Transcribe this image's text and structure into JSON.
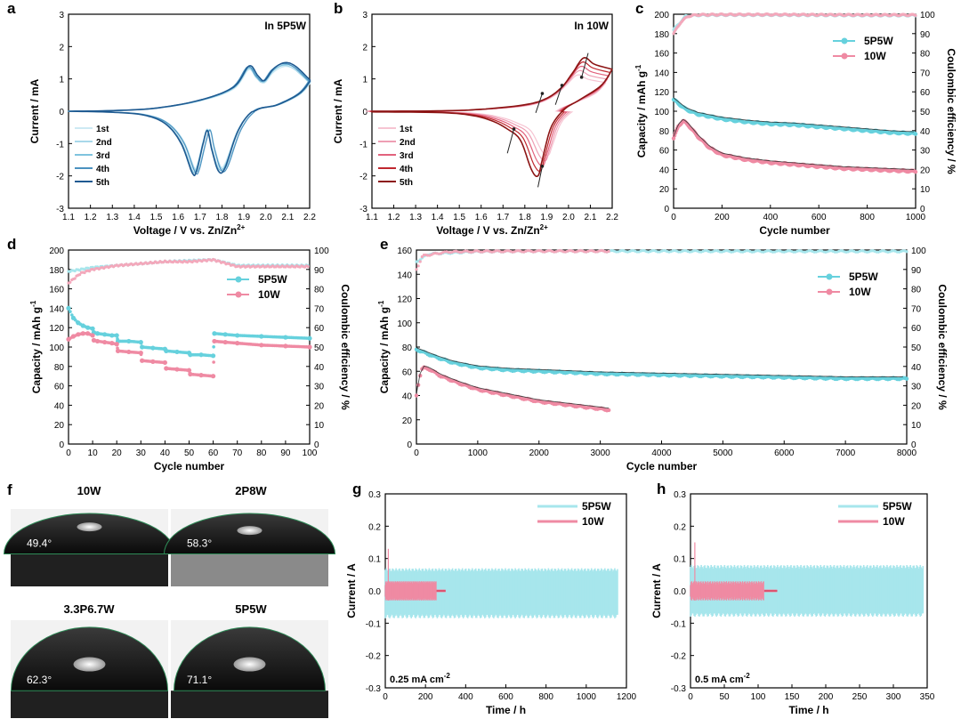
{
  "colors": {
    "blue": [
      "#cde9f3",
      "#a8d8ea",
      "#7fc3de",
      "#4b92c0",
      "#1f5a91"
    ],
    "red": [
      "#f6c4d2",
      "#ee9fb4",
      "#e2627d",
      "#c0282f",
      "#8c1515"
    ],
    "cyan": "#66d1dd",
    "cyan_light": "#a7e6ec",
    "pink": "#ef8aa3",
    "pink_light": "#f3a8bb"
  },
  "chart_data": [
    {
      "id": "a",
      "type": "line",
      "letter": "a",
      "inset_text": "In 5P5W",
      "xlabel": "Voltage / V vs. Zn/Zn",
      "xlabel_sup": "2+",
      "ylabel": "Current / mA",
      "xlim": [
        1.1,
        2.2
      ],
      "ylim": [
        -3,
        3
      ],
      "xticks": [
        "1.1",
        "1.2",
        "1.3",
        "1.4",
        "1.5",
        "1.6",
        "1.7",
        "1.8",
        "1.9",
        "2.0",
        "2.1",
        "2.2"
      ],
      "yticks": [
        "-3",
        "-2",
        "-1",
        "0",
        "1",
        "2",
        "3"
      ],
      "legend": [
        "1st",
        "2nd",
        "3rd",
        "4th",
        "5th"
      ],
      "series_ctrl": {
        "cathodic": [
          [
            2.2,
            0.95
          ],
          [
            2.15,
            0.55
          ],
          [
            2.05,
            0.2
          ],
          [
            1.95,
            0.02
          ],
          [
            1.88,
            -0.6
          ],
          [
            1.82,
            -1.75
          ],
          [
            1.79,
            -1.85
          ],
          [
            1.76,
            -1.2
          ],
          [
            1.74,
            -0.6
          ],
          [
            1.72,
            -1.0
          ],
          [
            1.69,
            -1.85
          ],
          [
            1.67,
            -1.9
          ],
          [
            1.62,
            -1.0
          ],
          [
            1.55,
            -0.4
          ],
          [
            1.45,
            -0.12
          ],
          [
            1.3,
            -0.03
          ],
          [
            1.1,
            0
          ]
        ],
        "anodic": [
          [
            1.1,
            0
          ],
          [
            1.3,
            0.02
          ],
          [
            1.5,
            0.1
          ],
          [
            1.7,
            0.35
          ],
          [
            1.85,
            0.75
          ],
          [
            1.92,
            1.4
          ],
          [
            1.96,
            1.1
          ],
          [
            1.99,
            0.95
          ],
          [
            2.03,
            1.3
          ],
          [
            2.08,
            1.5
          ],
          [
            2.13,
            1.4
          ],
          [
            2.2,
            0.95
          ]
        ]
      }
    },
    {
      "id": "b",
      "type": "line",
      "letter": "b",
      "inset_text": "In 10W",
      "xlabel": "Voltage / V vs. Zn/Zn",
      "xlabel_sup": "2+",
      "ylabel": "Current / mA",
      "xlim": [
        1.1,
        2.2
      ],
      "ylim": [
        -3,
        3
      ],
      "xticks": [
        "1.1",
        "1.2",
        "1.3",
        "1.4",
        "1.5",
        "1.6",
        "1.7",
        "1.8",
        "1.9",
        "2.0",
        "2.1",
        "2.2"
      ],
      "yticks": [
        "-3",
        "-2",
        "-1",
        "0",
        "1",
        "2",
        "3"
      ],
      "legend": [
        "1st",
        "2nd",
        "3rd",
        "4th",
        "5th"
      ],
      "series_ctrl": {
        "cathodic": [
          [
            2.2,
            1.3
          ],
          [
            2.15,
            0.8
          ],
          [
            2.05,
            0.35
          ],
          [
            1.98,
            0.05
          ],
          [
            1.92,
            -0.5
          ],
          [
            1.88,
            -1.5
          ],
          [
            1.86,
            -2.0
          ],
          [
            1.83,
            -1.8
          ],
          [
            1.78,
            -0.9
          ],
          [
            1.72,
            -0.55
          ],
          [
            1.65,
            -0.3
          ],
          [
            1.55,
            -0.12
          ],
          [
            1.4,
            -0.04
          ],
          [
            1.1,
            -0.02
          ]
        ],
        "anodic": [
          [
            1.1,
            0
          ],
          [
            1.4,
            0.01
          ],
          [
            1.6,
            0.06
          ],
          [
            1.8,
            0.2
          ],
          [
            1.9,
            0.4
          ],
          [
            1.97,
            0.75
          ],
          [
            2.02,
            1.2
          ],
          [
            2.07,
            1.65
          ],
          [
            2.12,
            1.45
          ],
          [
            2.2,
            1.3
          ]
        ]
      }
    },
    {
      "id": "c",
      "type": "scatter",
      "letter": "c",
      "xlabel": "Cycle number",
      "ylabel": "Capacity / mAh g",
      "ylabel_sup": "-1",
      "y2label": "Coulombic efficiency / %",
      "xlim": [
        0,
        1000
      ],
      "ylim": [
        0,
        200
      ],
      "y2lim": [
        0,
        100
      ],
      "xticks": [
        "0",
        "200",
        "400",
        "600",
        "800",
        "1000"
      ],
      "yticks": [
        "0",
        "20",
        "40",
        "60",
        "80",
        "100",
        "120",
        "140",
        "160",
        "180",
        "200"
      ],
      "y2ticks": [
        "0",
        "10",
        "20",
        "30",
        "40",
        "50",
        "60",
        "70",
        "80",
        "90",
        "100"
      ],
      "legend": [
        "5P5W",
        "10W"
      ],
      "series": [
        {
          "name": "5P5W capacity",
          "x": [
            0,
            20,
            50,
            100,
            200,
            300,
            400,
            500,
            600,
            700,
            800,
            900,
            1000
          ],
          "y": [
            112,
            108,
            102,
            97,
            92,
            89,
            87,
            86,
            84,
            82,
            80,
            78,
            77
          ]
        },
        {
          "name": "10W capacity",
          "x": [
            0,
            20,
            40,
            60,
            100,
            150,
            200,
            300,
            400,
            500,
            600,
            700,
            800,
            900,
            1000
          ],
          "y": [
            72,
            85,
            90,
            86,
            74,
            62,
            55,
            50,
            47,
            45,
            43,
            41,
            40,
            39,
            38
          ]
        },
        {
          "name": "5P5W CE",
          "x": [
            0,
            50,
            100,
            200,
            400,
            600,
            800,
            1000
          ],
          "y": [
            92,
            99,
            99.5,
            99.6,
            99.6,
            99.5,
            99.4,
            99.4
          ]
        },
        {
          "name": "10W CE",
          "x": [
            0,
            30,
            60,
            100,
            200,
            400,
            600,
            800,
            1000
          ],
          "y": [
            90,
            96,
            99,
            99.7,
            99.8,
            99.8,
            99.7,
            99.6,
            99.6
          ]
        }
      ]
    },
    {
      "id": "d",
      "type": "scatter",
      "letter": "d",
      "xlabel": "Cycle number",
      "ylabel": "Capacity / mAh g",
      "ylabel_sup": "-1",
      "y2label": "Coulombic efficiency / %",
      "xlim": [
        0,
        100
      ],
      "ylim": [
        0,
        200
      ],
      "y2lim": [
        0,
        100
      ],
      "xticks": [
        "0",
        "10",
        "20",
        "30",
        "40",
        "50",
        "60",
        "70",
        "80",
        "90",
        "100"
      ],
      "yticks": [
        "0",
        "20",
        "40",
        "60",
        "80",
        "100",
        "120",
        "140",
        "160",
        "180",
        "200"
      ],
      "y2ticks": [
        "0",
        "10",
        "20",
        "30",
        "40",
        "50",
        "60",
        "70",
        "80",
        "90",
        "100"
      ],
      "legend": [
        "5P5W",
        "10W"
      ],
      "series": [
        {
          "name": "5P5W capacity",
          "x": [
            0,
            2,
            4,
            6,
            8,
            10,
            10.5,
            12,
            15,
            18,
            20,
            20.5,
            25,
            30,
            30.5,
            35,
            40,
            40.5,
            45,
            50,
            50.5,
            55,
            60,
            60.5,
            65,
            70,
            80,
            90,
            100
          ],
          "y": [
            140,
            130,
            125,
            122,
            120,
            119,
            115,
            114,
            113,
            112,
            112,
            106,
            106,
            105,
            100,
            99,
            98,
            96,
            95,
            94,
            92,
            92,
            91,
            114,
            113,
            112,
            111,
            110,
            109
          ]
        },
        {
          "name": "10W capacity",
          "x": [
            0,
            2,
            4,
            6,
            8,
            10,
            10.5,
            12,
            15,
            18,
            20,
            20.5,
            25,
            30,
            30.5,
            35,
            40,
            40.5,
            45,
            50,
            50.5,
            55,
            60,
            60.5,
            65,
            70,
            80,
            90,
            100
          ],
          "y": [
            108,
            111,
            113,
            114,
            114,
            112,
            107,
            106,
            105,
            104,
            103,
            96,
            95,
            94,
            86,
            85,
            84,
            78,
            77,
            76,
            72,
            71,
            70,
            106,
            105,
            104,
            102,
            101,
            100
          ]
        },
        {
          "name": "5P5W CE",
          "x": [
            0,
            10,
            20,
            30,
            40,
            50,
            60,
            70,
            80,
            90,
            100
          ],
          "y": [
            89,
            91,
            92,
            93,
            94,
            94.5,
            95,
            92,
            92,
            92,
            92
          ]
        },
        {
          "name": "10W CE",
          "x": [
            0,
            5,
            10,
            20,
            30,
            40,
            50,
            60,
            70,
            80,
            90,
            100
          ],
          "y": [
            83,
            88,
            90,
            92,
            93,
            94,
            94,
            95,
            91.5,
            91.5,
            91.5,
            91.5
          ]
        }
      ]
    },
    {
      "id": "e",
      "type": "scatter",
      "letter": "e",
      "xlabel": "Cycle number",
      "ylabel": "Capacity / mAh g",
      "ylabel_sup": "-1",
      "y2label": "Coulombic efficiency / %",
      "xlim": [
        0,
        8000
      ],
      "ylim": [
        0,
        160
      ],
      "y2lim": [
        0,
        100
      ],
      "xticks": [
        "0",
        "1000",
        "2000",
        "3000",
        "4000",
        "5000",
        "6000",
        "7000",
        "8000"
      ],
      "yticks": [
        "0",
        "20",
        "40",
        "60",
        "80",
        "100",
        "120",
        "140",
        "160"
      ],
      "y2ticks": [
        "0",
        "10",
        "20",
        "30",
        "40",
        "50",
        "60",
        "70",
        "80",
        "90",
        "100"
      ],
      "legend": [
        "5P5W",
        "10W"
      ],
      "series": [
        {
          "name": "5P5W capacity",
          "x": [
            0,
            300,
            600,
            1000,
            1500,
            2000,
            3000,
            4000,
            5000,
            6000,
            7000,
            8000
          ],
          "y": [
            78,
            72,
            67,
            63,
            61,
            60,
            58,
            57,
            56,
            55,
            54,
            54
          ]
        },
        {
          "name": "10W capacity",
          "x": [
            0,
            50,
            100,
            200,
            400,
            700,
            1000,
            1500,
            2000,
            2500,
            3000,
            3150
          ],
          "y": [
            40,
            55,
            63,
            62,
            56,
            50,
            45,
            40,
            35,
            32,
            29,
            28
          ]
        },
        {
          "name": "5P5W CE",
          "x": [
            0,
            200,
            1000,
            2000,
            4000,
            6000,
            8000
          ],
          "y": [
            94,
            98,
            99.2,
            99.4,
            99.4,
            99.3,
            99.3
          ]
        },
        {
          "name": "10W CE",
          "x": [
            0,
            100,
            500,
            1000,
            2000,
            3150
          ],
          "y": [
            90,
            97,
            99,
            99.3,
            99.4,
            99.4
          ]
        }
      ]
    },
    {
      "id": "g",
      "type": "area",
      "letter": "g",
      "inset_text": "0.25 mA cm",
      "inset_sup": "-2",
      "xlabel": "Time / h",
      "ylabel": "Current / A",
      "xlim": [
        0,
        1200
      ],
      "ylim": [
        -0.3,
        0.3
      ],
      "xticks": [
        "0",
        "200",
        "400",
        "600",
        "800",
        "1000",
        "1200"
      ],
      "yticks": [
        "-0.3",
        "-0.2",
        "-0.1",
        "0.0",
        "0.1",
        "0.2",
        "0.3"
      ],
      "legend": [
        "5P5W",
        "10W"
      ],
      "series": [
        {
          "name": "5P5W",
          "x_range": [
            0,
            1160
          ],
          "amplitude": [
            0.07,
            -0.085
          ]
        },
        {
          "name": "10W",
          "x_range": [
            0,
            300
          ],
          "amplitude": [
            0.03,
            -0.03
          ],
          "spike": 0.13
        }
      ]
    },
    {
      "id": "h",
      "type": "area",
      "letter": "h",
      "inset_text": "0.5 mA cm",
      "inset_sup": "-2",
      "xlabel": "Time / h",
      "ylabel": "Current / A",
      "xlim": [
        0,
        360
      ],
      "ylim": [
        -0.3,
        0.3
      ],
      "xticks": [
        "0",
        "50",
        "100",
        "150",
        "200",
        "250",
        "300",
        "350"
      ],
      "yticks": [
        "-0.3",
        "-0.2",
        "-0.1",
        "0.0",
        "0.1",
        "0.2",
        "0.3"
      ],
      "legend": [
        "5P5W",
        "10W"
      ],
      "series": [
        {
          "name": "5P5W",
          "x_range": [
            0,
            355
          ],
          "amplitude": [
            0.08,
            -0.08
          ]
        },
        {
          "name": "10W",
          "x_range": [
            0,
            132
          ],
          "amplitude": [
            0.03,
            -0.03
          ],
          "spike": 0.15
        }
      ]
    }
  ],
  "panel_f": {
    "letter": "f",
    "images": [
      {
        "label": "10W",
        "angle": "49.4°"
      },
      {
        "label": "2P8W",
        "angle": "58.3°"
      },
      {
        "label": "3.3P6.7W",
        "angle": "62.3°"
      },
      {
        "label": "5P5W",
        "angle": "71.1°"
      }
    ]
  }
}
